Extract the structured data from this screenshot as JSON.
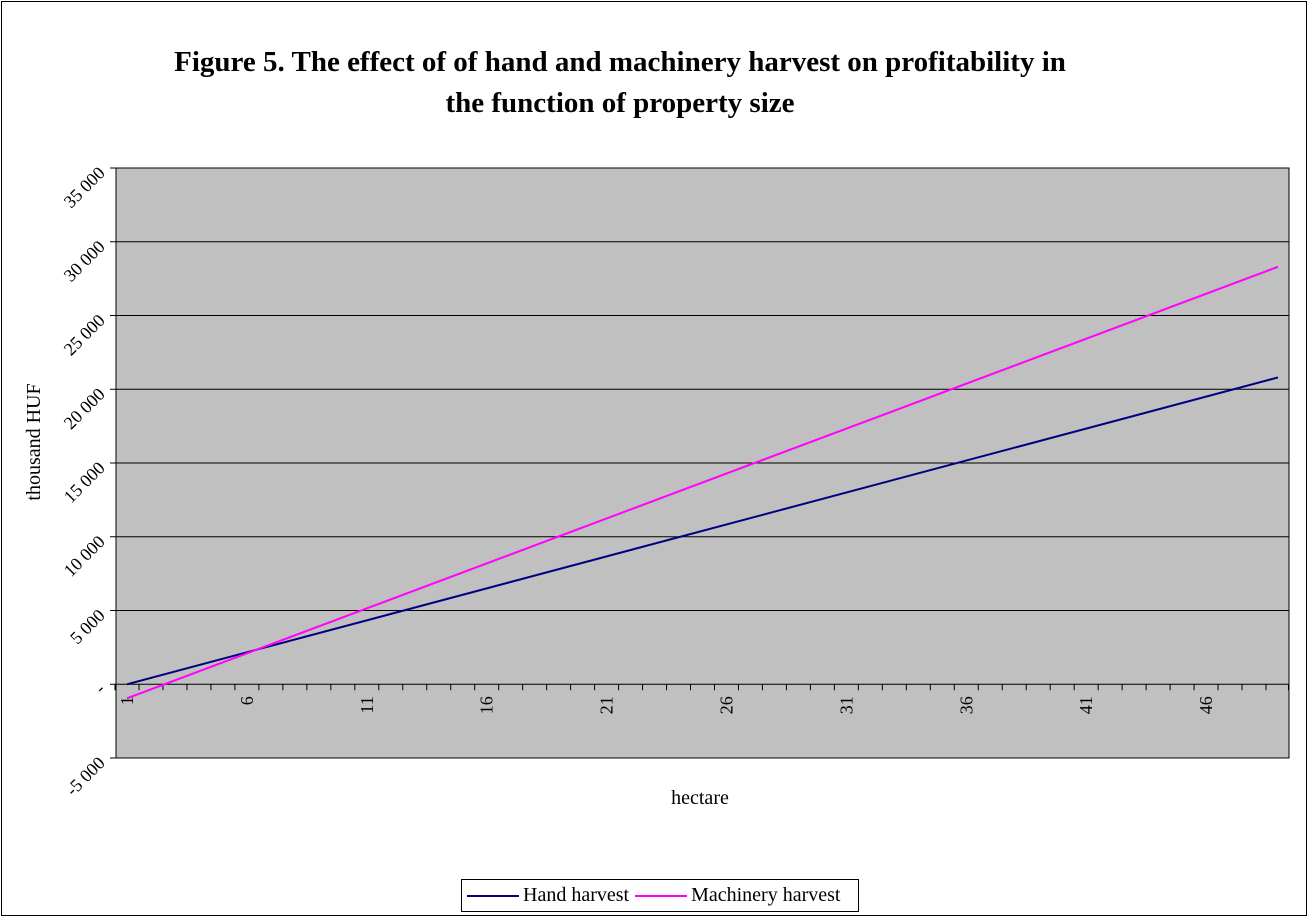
{
  "chart_data": {
    "type": "line",
    "title": [
      "Figure 5. The effect of of hand and machinery harvest on profitability in",
      "the function of property size"
    ],
    "xlabel": "hectare",
    "ylabel": "thousand HUF",
    "x": [
      1,
      49
    ],
    "x_ticks": [
      "1",
      "6",
      "11",
      "16",
      "21",
      "26",
      "31",
      "36",
      "41",
      "46"
    ],
    "y_ticks": [
      "-5 000",
      "-",
      "5 000",
      "10 000",
      "15 000",
      "20 000",
      "25 000",
      "30 000",
      "35 000"
    ],
    "ylim": [
      -5000,
      35000
    ],
    "grid": true,
    "legend": "bottom",
    "series": [
      {
        "name": "Hand harvest",
        "color": "#000080",
        "x": [
          1,
          49
        ],
        "values": [
          0,
          20800
        ]
      },
      {
        "name": "Machinery harvest",
        "color": "#ff00ff",
        "x": [
          1,
          49
        ],
        "values": [
          -950,
          28300
        ]
      }
    ]
  },
  "colors": {
    "plot_background": "#c0c0c0",
    "gridline": "#000000"
  }
}
